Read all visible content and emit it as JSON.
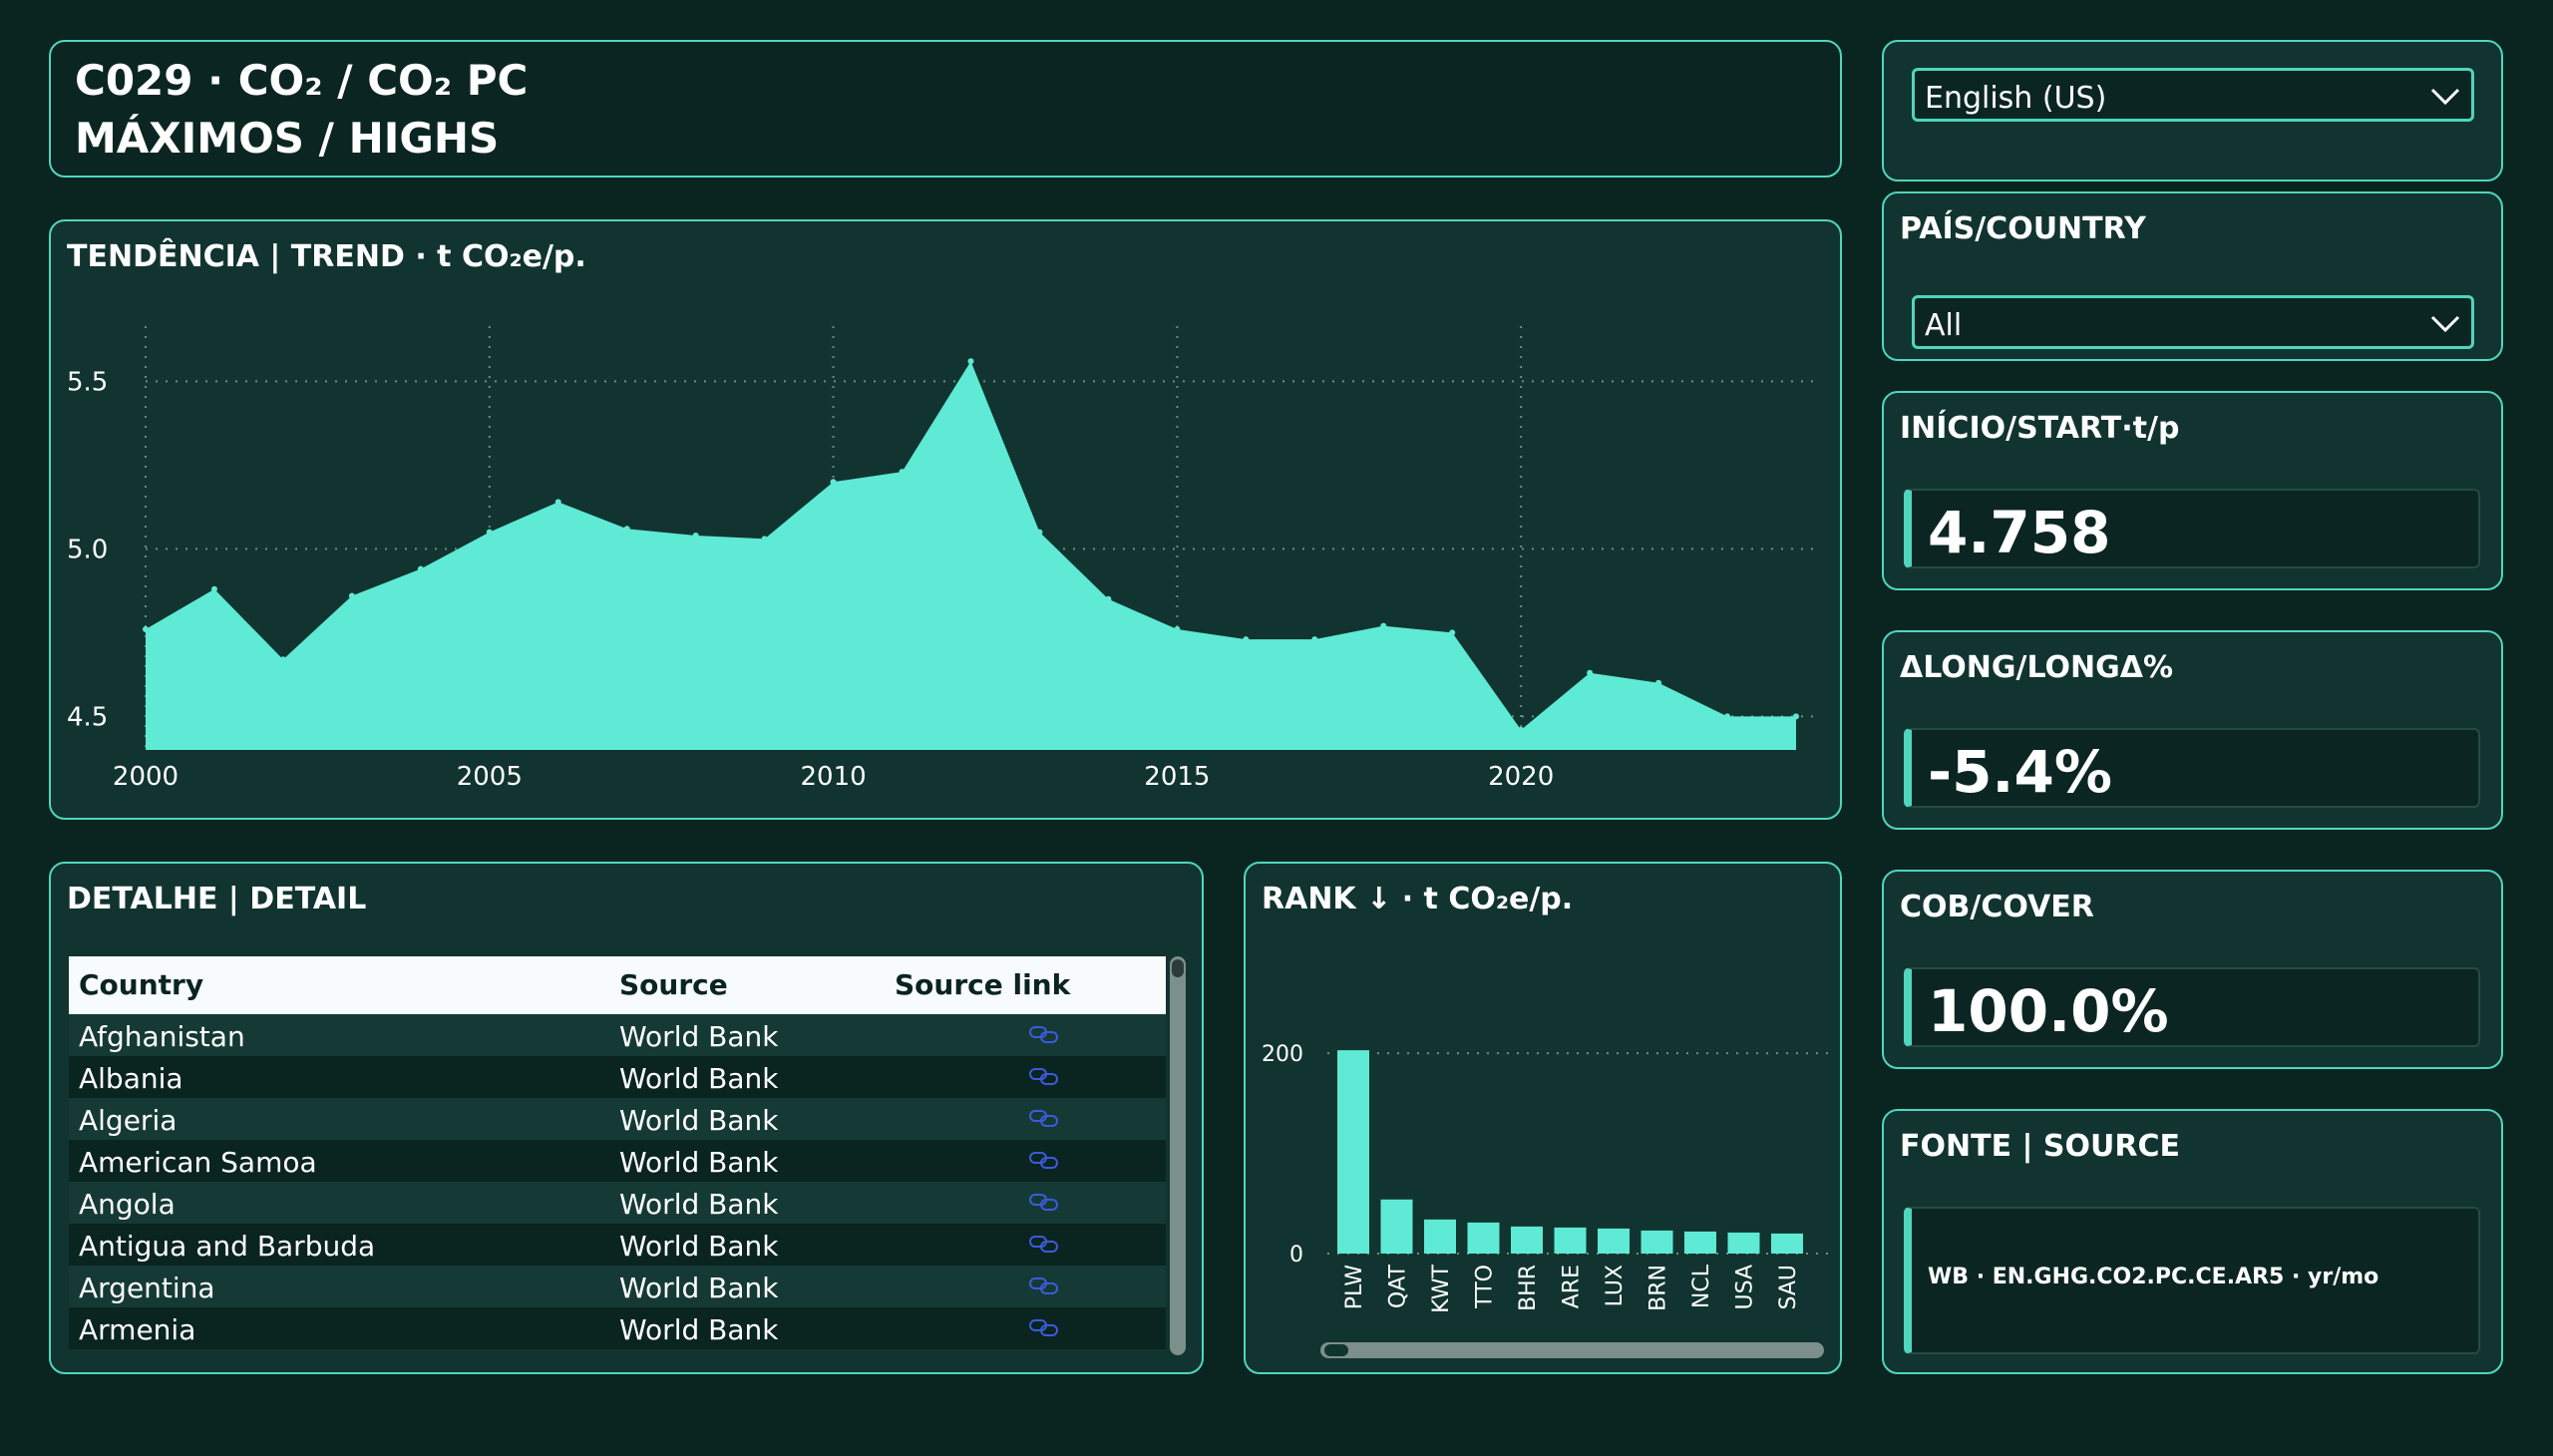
{
  "header": {
    "line1": "C029 · CO₂ / CO₂ PC",
    "line2": "MÁXIMOS / HIGHS"
  },
  "trend": {
    "title": "TENDÊNCIA | TREND · t CO₂e/p."
  },
  "detail": {
    "title": "DETALHE | DETAIL",
    "columns": [
      "Country",
      "Source",
      "Source link"
    ],
    "rows": [
      {
        "country": "Afghanistan",
        "source": "World Bank"
      },
      {
        "country": "Albania",
        "source": "World Bank"
      },
      {
        "country": "Algeria",
        "source": "World Bank"
      },
      {
        "country": "American Samoa",
        "source": "World Bank"
      },
      {
        "country": "Angola",
        "source": "World Bank"
      },
      {
        "country": "Antigua and Barbuda",
        "source": "World Bank"
      },
      {
        "country": "Argentina",
        "source": "World Bank"
      },
      {
        "country": "Armenia",
        "source": "World Bank"
      }
    ]
  },
  "rank": {
    "title": "RANK ↓ · t CO₂e/p."
  },
  "language": {
    "selected": "English (US)"
  },
  "country_filter": {
    "title": "PAÍS/COUNTRY",
    "selected": "All"
  },
  "kpis": {
    "start": {
      "label": "INÍCIO/START·t/p",
      "value": "4.758"
    },
    "delta": {
      "label": "ΔLONG/LONGΔ%",
      "value": "-5.4%"
    },
    "cover": {
      "label": "COB/COVER",
      "value": "100.0%"
    }
  },
  "source_panel": {
    "title": "FONTE | SOURCE",
    "value": "WB · EN.GHG.CO2.PC.CE.AR5 · yr/mo"
  },
  "colors": {
    "accent": "#5eead4",
    "background": "#0a2420",
    "panel": "#113430",
    "link_icon": "#3b5bdb"
  },
  "chart_data": [
    {
      "type": "area",
      "title": "TENDÊNCIA | TREND · t CO₂e/p.",
      "x": [
        2000,
        2001,
        2002,
        2003,
        2004,
        2005,
        2006,
        2007,
        2008,
        2009,
        2010,
        2011,
        2012,
        2013,
        2014,
        2015,
        2016,
        2017,
        2018,
        2019,
        2020,
        2021,
        2022,
        2023,
        2024
      ],
      "values": [
        4.76,
        4.88,
        4.67,
        4.86,
        4.94,
        5.05,
        5.14,
        5.06,
        5.04,
        5.03,
        5.2,
        5.23,
        5.56,
        5.05,
        4.85,
        4.76,
        4.73,
        4.73,
        4.77,
        4.75,
        4.46,
        4.63,
        4.6,
        4.5,
        4.5
      ],
      "x_ticks": [
        2000,
        2005,
        2010,
        2015,
        2020
      ],
      "y_ticks": [
        4.5,
        5.0,
        5.5
      ],
      "y_tick_labels": [
        "4.5",
        "5.0",
        "5.5"
      ],
      "ylim": [
        4.4,
        5.65
      ],
      "grid": true
    },
    {
      "type": "bar",
      "title": "RANK ↓ · t CO₂e/p.",
      "categories": [
        "PLW",
        "QAT",
        "KWT",
        "TTO",
        "BHR",
        "ARE",
        "LUX",
        "BRN",
        "NCL",
        "USA",
        "SAU"
      ],
      "values": [
        203,
        54,
        34,
        31,
        27,
        26,
        25,
        23,
        22,
        21,
        20
      ],
      "y_ticks": [
        0,
        200
      ],
      "ylim": [
        0,
        230
      ],
      "grid": true
    }
  ]
}
